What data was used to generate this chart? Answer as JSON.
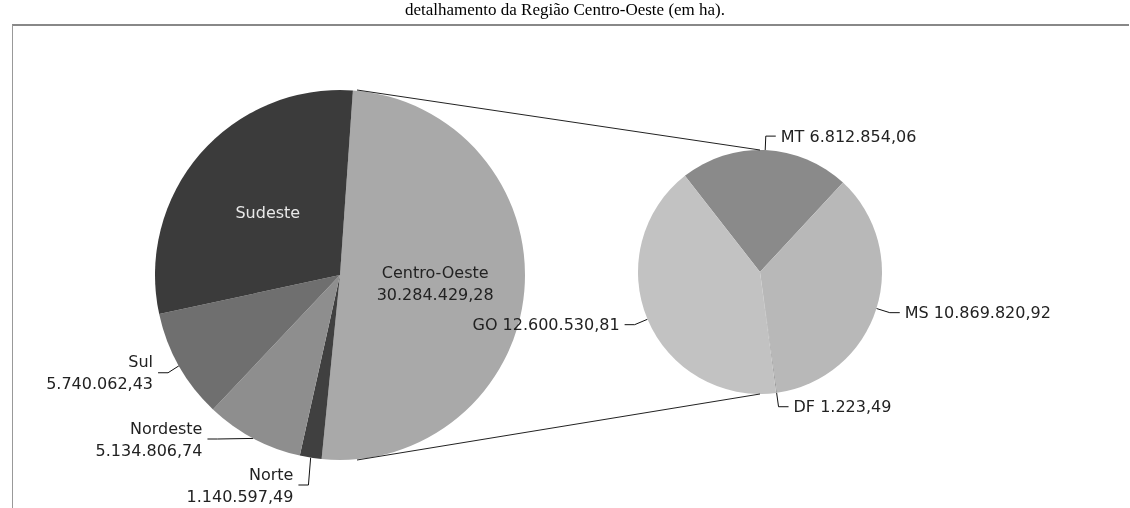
{
  "chart_data": [
    {
      "type": "pie",
      "title": "detalhamento da Região Centro-Oeste (em ha).",
      "categories": [
        "Centro-Oeste",
        "Norte",
        "Nordeste",
        "Sul",
        "Sudeste"
      ],
      "values": [
        30284429.28,
        1140597.49,
        5134806.74,
        5740062.43,
        17700000
      ],
      "value_labels": [
        "30.284.429,28",
        "1.140.597,49",
        "5.134.806,74",
        "5.740.062,43",
        null
      ],
      "colors": [
        "#a9a9a9",
        "#404040",
        "#8e8e8e",
        "#6f6f6f",
        "#3b3b3b"
      ]
    },
    {
      "type": "pie",
      "categories": [
        "MT",
        "MS",
        "DF",
        "GO"
      ],
      "values": [
        6812854.06,
        10869820.92,
        1223.49,
        12600530.81
      ],
      "value_labels": [
        "6.812.854,06",
        "10.869.820,92",
        "1.223,49",
        "12.600.530,81"
      ],
      "colors": [
        "#8a8a8a",
        "#b8b8b8",
        "#9a9a9a",
        "#c2c2c2"
      ]
    }
  ]
}
